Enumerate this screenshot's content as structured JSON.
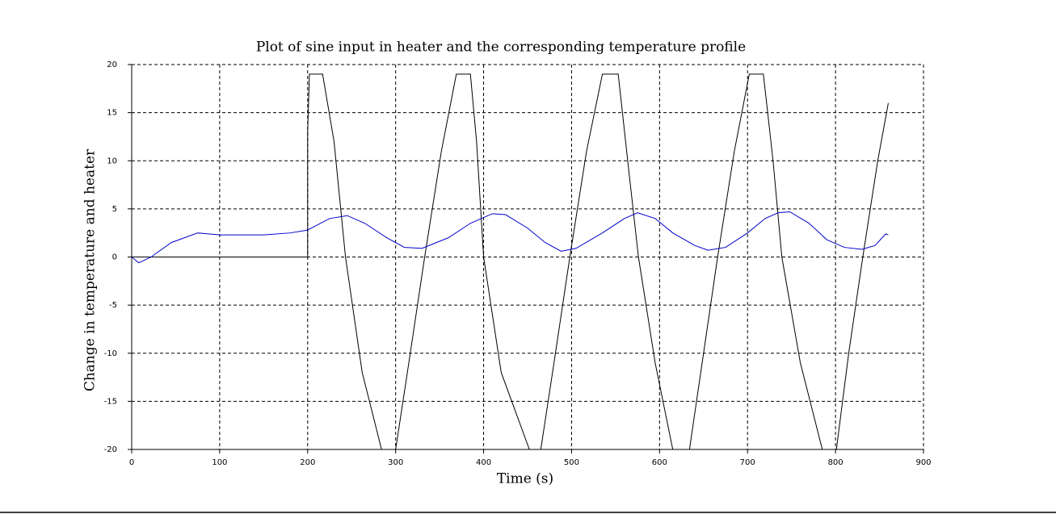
{
  "chart_data": {
    "type": "line",
    "title": "Plot of sine input in heater and the corresponding temperature profile",
    "x_label": "Time (s)",
    "y_label": "Change in temperature and heater",
    "xlim": [
      0,
      900
    ],
    "xticks": [
      0,
      100,
      200,
      300,
      400,
      500,
      600,
      700,
      800,
      900
    ],
    "ylim": [
      -20,
      20
    ],
    "yticks": [
      -20,
      -15,
      -10,
      -5,
      0,
      5,
      10,
      15,
      20
    ],
    "grid": true,
    "series": [
      {
        "color": "#000000",
        "x": [
          0,
          200,
          200,
          202,
          217,
          230,
          243,
          262,
          284,
          300,
          315,
          333,
          352,
          369,
          385,
          392,
          400,
          420,
          452,
          465,
          480,
          498,
          517,
          535,
          553,
          565,
          576,
          595,
          615,
          634,
          650,
          666,
          685,
          702,
          718,
          729,
          739,
          760,
          785,
          801,
          815,
          831,
          848,
          860
        ],
        "values": [
          0,
          0,
          13,
          19,
          19,
          12,
          0,
          -12,
          -20,
          -20,
          -11,
          0,
          11,
          19,
          19,
          12,
          0,
          -12,
          -20,
          -20,
          -11,
          0,
          11,
          19,
          19,
          9,
          0,
          -11,
          -20,
          -20,
          -10,
          0,
          11,
          19,
          19,
          10,
          0,
          -11,
          -20,
          -20,
          -10,
          0,
          10,
          16
        ]
      },
      {
        "color": "#0000cc",
        "x": [
          0,
          8,
          22,
          45,
          75,
          100,
          150,
          180,
          200,
          225,
          245,
          265,
          290,
          310,
          330,
          360,
          385,
          410,
          425,
          450,
          470,
          488,
          505,
          535,
          560,
          575,
          595,
          615,
          640,
          655,
          675,
          700,
          720,
          735,
          748,
          770,
          790,
          810,
          830,
          845,
          857,
          860
        ],
        "values": [
          0,
          -0.6,
          0,
          1.5,
          2.5,
          2.3,
          2.3,
          2.5,
          2.8,
          4,
          4.3,
          3.5,
          2,
          1,
          0.9,
          2,
          3.5,
          4.5,
          4.4,
          3,
          1.5,
          0.6,
          0.9,
          2.5,
          4,
          4.6,
          4,
          2.5,
          1.2,
          0.7,
          1,
          2.5,
          4,
          4.6,
          4.7,
          3.5,
          1.8,
          1,
          0.8,
          1.2,
          2.4,
          2.3
        ]
      }
    ]
  }
}
